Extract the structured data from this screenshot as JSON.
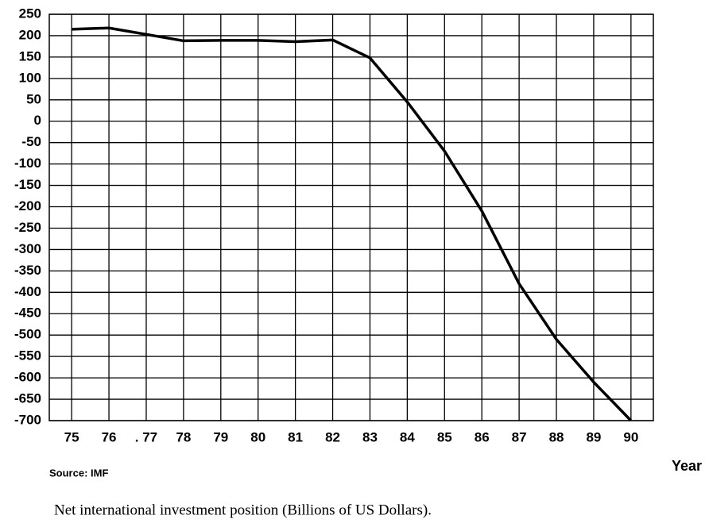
{
  "chart_data": {
    "type": "line",
    "x": [
      75,
      76,
      77,
      78,
      79,
      80,
      81,
      82,
      83,
      84,
      85,
      86,
      87,
      88,
      89,
      90
    ],
    "values": [
      215,
      218,
      203,
      188,
      189,
      189,
      186,
      190,
      148,
      45,
      -70,
      -210,
      -380,
      -510,
      -610,
      -700
    ],
    "color": "#000000",
    "xlim": [
      74.4,
      90.6
    ],
    "xticks": [
      75,
      76,
      {
        "value": 77,
        "label": ". 77"
      },
      78,
      79,
      80,
      81,
      82,
      83,
      84,
      85,
      86,
      87,
      88,
      89,
      90
    ],
    "ylim": [
      -700,
      250
    ],
    "yticks": [
      250,
      200,
      150,
      100,
      50,
      0,
      -50,
      -100,
      -150,
      -200,
      -250,
      -300,
      -350,
      -400,
      -450,
      -500,
      -550,
      -600,
      -650,
      -700
    ],
    "grid": true,
    "x_label": "Year",
    "source": "Source: IMF",
    "caption": "Net international investment position (Billions of US Dollars)."
  }
}
